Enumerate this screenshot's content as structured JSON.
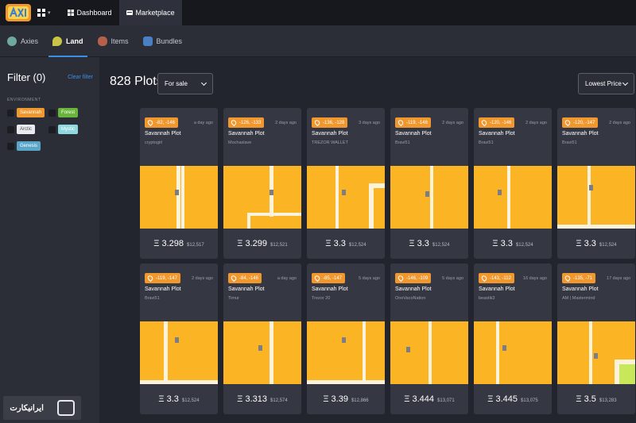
{
  "topbar": {
    "nav": [
      {
        "label": "Dashboard",
        "icon": "dashboard-icon",
        "active": false
      },
      {
        "label": "Marketplace",
        "icon": "marketplace-icon",
        "active": true
      }
    ]
  },
  "subtabs": [
    {
      "label": "Axies",
      "icon": "axie-icon",
      "color": "#6fa8a0"
    },
    {
      "label": "Land",
      "icon": "land-icon",
      "color": "#c9c447"
    },
    {
      "label": "Items",
      "icon": "items-icon",
      "color": "#b5614a"
    },
    {
      "label": "Bundles",
      "icon": "bundles-icon",
      "color": "#4a7fc1"
    }
  ],
  "sidebar": {
    "title": "Filter (0)",
    "clear": "Clear filter",
    "env_label": "ENVIRONMENT",
    "environments": [
      {
        "label": "Savannah",
        "color": "#f0972e"
      },
      {
        "label": "Forest",
        "color": "#69b43a"
      },
      {
        "label": "Arctic",
        "color": "#e9ebee",
        "text": "#555"
      },
      {
        "label": "Mystic",
        "color": "#8fd8e0"
      },
      {
        "label": "Genesis",
        "color": "#5aa6c9"
      }
    ]
  },
  "main": {
    "count": "828 Plots",
    "sale_filter": "For sale",
    "sort": "Lowest Price"
  },
  "cards": [
    {
      "coord": "-82, -146",
      "ago": "a day ago",
      "type": "Savannah Plot",
      "owner": "cryptogirl",
      "eth": "Ξ 3.298",
      "usd": "$12,517"
    },
    {
      "coord": "-126, -133",
      "ago": "2 days ago",
      "type": "Savannah Plot",
      "owner": "Mochaslave",
      "eth": "Ξ 3.299",
      "usd": "$12,521"
    },
    {
      "coord": "-136, -128",
      "ago": "3 days ago",
      "type": "Savannah Plot",
      "owner": "TREZOR WALLET",
      "eth": "Ξ 3.3",
      "usd": "$12,524"
    },
    {
      "coord": "-119, -146",
      "ago": "2 days ago",
      "type": "Savannah Plot",
      "owner": "Bravi51",
      "eth": "Ξ 3.3",
      "usd": "$12,524"
    },
    {
      "coord": "-120, -146",
      "ago": "2 days ago",
      "type": "Savannah Plot",
      "owner": "Bravi51",
      "eth": "Ξ 3.3",
      "usd": "$12,524"
    },
    {
      "coord": "-120, -147",
      "ago": "2 days ago",
      "type": "Savannah Plot",
      "owner": "Bravi51",
      "eth": "Ξ 3.3",
      "usd": "$12,524"
    },
    {
      "coord": "-119, -147",
      "ago": "2 days ago",
      "type": "Savannah Plot",
      "owner": "Bravi51",
      "eth": "Ξ 3.3",
      "usd": "$12,524"
    },
    {
      "coord": "-84, -146",
      "ago": "a day ago",
      "type": "Savannah Plot",
      "owner": "Timur",
      "eth": "Ξ 3.313",
      "usd": "$12,574"
    },
    {
      "coord": "-85, -147",
      "ago": "5 days ago",
      "type": "Savannah Plot",
      "owner": "Trezor 20",
      "eth": "Ξ 3.39",
      "usd": "$12,866"
    },
    {
      "coord": "-146, -109",
      "ago": "5 days ago",
      "type": "Savannah Plot",
      "owner": "OneVacoNation",
      "eth": "Ξ 3.444",
      "usd": "$13,071"
    },
    {
      "coord": "-143, -112",
      "ago": "16 days ago",
      "type": "Savannah Plot",
      "owner": "beastik3",
      "eth": "Ξ 3.445",
      "usd": "$13,075"
    },
    {
      "coord": "-135, -71",
      "ago": "17 days ago",
      "type": "Savannah Plot",
      "owner": "AM | Mastermind",
      "eth": "Ξ 3.5",
      "usd": "$13,283"
    }
  ],
  "watermark": "ایرانیکارت",
  "colors": {
    "land": "#fbb424",
    "road": "#faf2da",
    "marker": "#7d7d85",
    "accent": "#3b8fe6"
  }
}
